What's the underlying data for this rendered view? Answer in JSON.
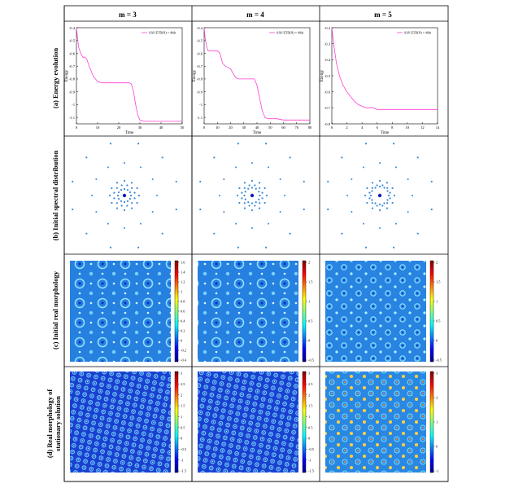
{
  "columns": [
    "m = 3",
    "m = 4",
    "m = 5"
  ],
  "rows": [
    "(a) Energy evolution",
    "(b) Initial spectral distribution",
    "(c) Initial real morphology",
    "(d) Real morphology of stationary solution"
  ],
  "energy": {
    "ylabel": "Energy",
    "xlabel": "Time",
    "legend": "SAV-ETD(N) = 40dt",
    "panels": [
      {
        "ylim": [
          -1.15,
          -0.4
        ],
        "yticks": [
          -0.4,
          -0.5,
          -0.6,
          -0.7,
          -0.8,
          -0.9,
          -1,
          -1.1
        ],
        "xlim": [
          0,
          50
        ],
        "xticks": [
          0,
          10,
          20,
          30,
          40,
          50
        ],
        "series": [
          [
            0,
            -0.4
          ],
          [
            1,
            -0.55
          ],
          [
            2,
            -0.6
          ],
          [
            3,
            -0.63
          ],
          [
            4,
            -0.63
          ],
          [
            5,
            -0.65
          ],
          [
            6,
            -0.7
          ],
          [
            7,
            -0.74
          ],
          [
            8,
            -0.78
          ],
          [
            9,
            -0.8
          ],
          [
            10,
            -0.82
          ],
          [
            12,
            -0.83
          ],
          [
            15,
            -0.83
          ],
          [
            20,
            -0.83
          ],
          [
            25,
            -0.83
          ],
          [
            26,
            -0.84
          ],
          [
            27,
            -0.9
          ],
          [
            28,
            -1.0
          ],
          [
            29,
            -1.08
          ],
          [
            30,
            -1.12
          ],
          [
            32,
            -1.13
          ],
          [
            40,
            -1.13
          ],
          [
            50,
            -1.13
          ]
        ]
      },
      {
        "ylim": [
          -1.15,
          -0.4
        ],
        "yticks": [
          -0.4,
          -0.5,
          -0.6,
          -0.7,
          -0.8,
          -0.9,
          -1,
          -1.1
        ],
        "xlim": [
          0,
          80
        ],
        "xticks": [
          0,
          10,
          20,
          30,
          40,
          50,
          60,
          70,
          80
        ],
        "series": [
          [
            0,
            -0.4
          ],
          [
            1,
            -0.5
          ],
          [
            2,
            -0.55
          ],
          [
            3,
            -0.58
          ],
          [
            5,
            -0.58
          ],
          [
            10,
            -0.58
          ],
          [
            12,
            -0.6
          ],
          [
            14,
            -0.68
          ],
          [
            16,
            -0.7
          ],
          [
            18,
            -0.71
          ],
          [
            20,
            -0.72
          ],
          [
            22,
            -0.76
          ],
          [
            24,
            -0.79
          ],
          [
            26,
            -0.8
          ],
          [
            30,
            -0.8
          ],
          [
            38,
            -0.8
          ],
          [
            40,
            -0.85
          ],
          [
            42,
            -0.95
          ],
          [
            44,
            -1.05
          ],
          [
            46,
            -1.1
          ],
          [
            48,
            -1.11
          ],
          [
            55,
            -1.11
          ],
          [
            60,
            -1.12
          ],
          [
            70,
            -1.12
          ],
          [
            80,
            -1.12
          ]
        ]
      },
      {
        "ylim": [
          -0.8,
          -0.2
        ],
        "yticks": [
          -0.2,
          -0.3,
          -0.4,
          -0.5,
          -0.6,
          -0.7,
          -0.8
        ],
        "xlim": [
          0,
          14
        ],
        "xticks": [
          0,
          2,
          4,
          6,
          8,
          10,
          12,
          14
        ],
        "series": [
          [
            0,
            -0.2
          ],
          [
            0.3,
            -0.32
          ],
          [
            0.6,
            -0.42
          ],
          [
            1,
            -0.5
          ],
          [
            1.5,
            -0.56
          ],
          [
            2,
            -0.6
          ],
          [
            2.5,
            -0.63
          ],
          [
            3,
            -0.66
          ],
          [
            3.5,
            -0.68
          ],
          [
            4,
            -0.69
          ],
          [
            4.5,
            -0.7
          ],
          [
            5,
            -0.7
          ],
          [
            5.5,
            -0.7
          ],
          [
            6,
            -0.71
          ],
          [
            8,
            -0.71
          ],
          [
            10,
            -0.71
          ],
          [
            12,
            -0.71
          ],
          [
            14,
            -0.71
          ]
        ]
      }
    ]
  },
  "colorbars": {
    "c": [
      {
        "ticks": [
          "1.6",
          "1.4",
          "1.2",
          "1",
          "0.8",
          "0.6",
          "0.4",
          "0.2",
          "0",
          "-0.2",
          "-0.4"
        ]
      },
      {
        "ticks": [
          "2",
          "1.5",
          "1",
          "0.5",
          "0",
          "-0.5"
        ]
      },
      {
        "ticks": [
          "2",
          "1.5",
          "1",
          "0.5",
          "0",
          "-0.5"
        ]
      }
    ],
    "d": [
      {
        "ticks": [
          "3",
          "2.5",
          "2",
          "1.5",
          "1",
          "0.5",
          "0",
          "-0.5",
          "-1",
          "-1.5"
        ]
      },
      {
        "ticks": [
          "3",
          "2.5",
          "2",
          "1.5",
          "1",
          "0.5",
          "0",
          "-0.5",
          "-1",
          "-1.5"
        ]
      },
      {
        "ticks": [
          "3",
          "2",
          "1",
          "0",
          "-1"
        ]
      }
    ]
  },
  "colors": {
    "line": "#ff3fd2",
    "morphology_bg": "#1e78dc",
    "spot_blue": "#3a8ad8",
    "spot_dark": "#1020c0",
    "grid": "#000000"
  }
}
